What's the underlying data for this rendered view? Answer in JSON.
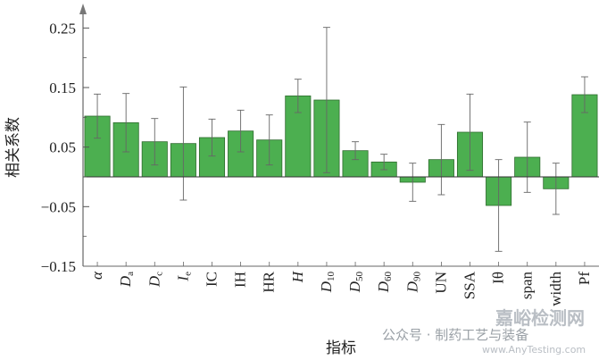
{
  "chart_data": {
    "type": "bar",
    "xlabel": "指标",
    "ylabel": "相关系数",
    "ylim": [
      -0.15,
      0.27
    ],
    "yticks": [
      -0.15,
      -0.05,
      0.05,
      0.15,
      0.25
    ],
    "ytick_labels": [
      "−0.15",
      "−0.05",
      "0.05",
      "0.15",
      "0.25"
    ],
    "grid": false,
    "bar_color": "#4caf50",
    "categories": [
      {
        "base": "α",
        "sub": "",
        "italic": true
      },
      {
        "base": "D",
        "sub": "a",
        "italic": true
      },
      {
        "base": "D",
        "sub": "c",
        "italic": true
      },
      {
        "base": "I",
        "sub": "e",
        "italic": true
      },
      {
        "base": "IC",
        "sub": "",
        "italic": false
      },
      {
        "base": "IH",
        "sub": "",
        "italic": false
      },
      {
        "base": "HR",
        "sub": "",
        "italic": false
      },
      {
        "base": "H",
        "sub": "",
        "italic": true
      },
      {
        "base": "D",
        "sub": "10",
        "italic": true
      },
      {
        "base": "D",
        "sub": "50",
        "italic": true
      },
      {
        "base": "D",
        "sub": "60",
        "italic": true
      },
      {
        "base": "D",
        "sub": "90",
        "italic": true
      },
      {
        "base": "UN",
        "sub": "",
        "italic": false
      },
      {
        "base": "SSA",
        "sub": "",
        "italic": false
      },
      {
        "base": "Iθ",
        "sub": "",
        "italic": false
      },
      {
        "base": "span",
        "sub": "",
        "italic": false
      },
      {
        "base": "width",
        "sub": "",
        "italic": false
      },
      {
        "base": "Pf",
        "sub": "",
        "italic": false
      }
    ],
    "values": [
      0.102,
      0.091,
      0.059,
      0.056,
      0.066,
      0.077,
      0.062,
      0.136,
      0.129,
      0.044,
      0.025,
      -0.009,
      0.029,
      0.075,
      -0.048,
      0.033,
      -0.02,
      0.138
    ],
    "error": [
      0.037,
      0.049,
      0.039,
      0.095,
      0.031,
      0.035,
      0.042,
      0.028,
      0.122,
      0.015,
      0.013,
      0.032,
      0.059,
      0.064,
      0.077,
      0.059,
      0.043,
      0.03
    ]
  },
  "watermark": {
    "account": "公众号 · 制药工艺与装备",
    "site_cn": "嘉峪检测网",
    "site_url": "www.AnyTesting.com"
  }
}
